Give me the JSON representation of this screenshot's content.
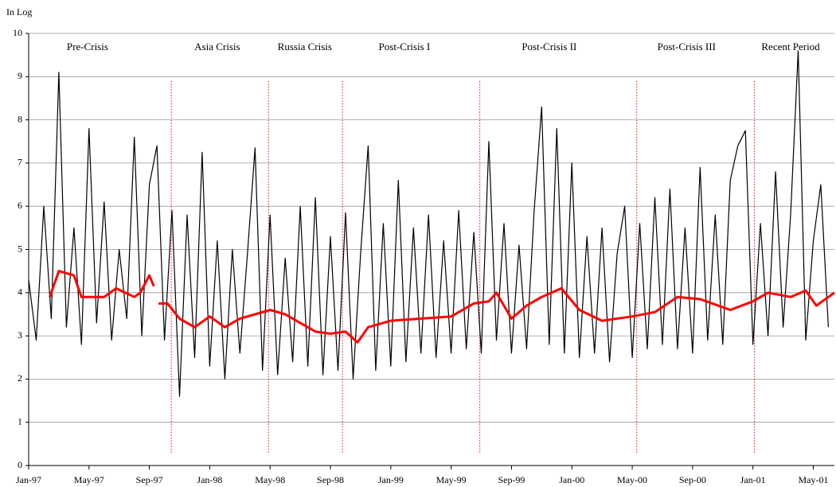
{
  "chart_data": {
    "type": "line",
    "ylabel": "In Log",
    "ylim": [
      0,
      10
    ],
    "yticks": [
      0,
      1,
      2,
      3,
      4,
      5,
      6,
      7,
      8,
      9,
      10
    ],
    "xlim": [
      0,
      53.4
    ],
    "xticks": [
      {
        "value": 0,
        "label": "Jan-97"
      },
      {
        "value": 4,
        "label": "May-97"
      },
      {
        "value": 8,
        "label": "Sep-97"
      },
      {
        "value": 12,
        "label": "Jan-98"
      },
      {
        "value": 16,
        "label": "May-98"
      },
      {
        "value": 20,
        "label": "Sep-98"
      },
      {
        "value": 24,
        "label": "Jan-99"
      },
      {
        "value": 28,
        "label": "May-99"
      },
      {
        "value": 32,
        "label": "Sep-99"
      },
      {
        "value": 36,
        "label": "Jan-00"
      },
      {
        "value": 40,
        "label": "May-00"
      },
      {
        "value": 44,
        "label": "Sep-00"
      },
      {
        "value": 48,
        "label": "Jan-01"
      },
      {
        "value": 52,
        "label": "May-01"
      }
    ],
    "grid": true,
    "periods": [
      {
        "label": "Pre-Crisis",
        "x": 3.9
      },
      {
        "label": "Asia Crisis",
        "x": 12.5
      },
      {
        "label": "Russia Crisis",
        "x": 18.3
      },
      {
        "label": "Post-Crisis I",
        "x": 24.9
      },
      {
        "label": "Post-Crisis II",
        "x": 34.5
      },
      {
        "label": "Post-Crisis III",
        "x": 43.6
      },
      {
        "label": "Recent Period",
        "x": 50.5
      }
    ],
    "dividers": {
      "color": "#ff0000",
      "x": [
        9.45,
        15.9,
        20.8,
        29.9,
        40.3,
        48.1
      ]
    },
    "series": [
      {
        "color": "#000000",
        "x": [
          0,
          0.5,
          1,
          1.5,
          2,
          2.5,
          3,
          3.5,
          4,
          4.5,
          5,
          5.5,
          6,
          6.5,
          7,
          7.5,
          8,
          8.5,
          9,
          9.5,
          10,
          10.5,
          11,
          11.5,
          12,
          12.5,
          13,
          13.5,
          14,
          14.5,
          15,
          15.5,
          16,
          16.5,
          17,
          17.5,
          18,
          18.5,
          19,
          19.5,
          20,
          20.5,
          21,
          21.5,
          22,
          22.5,
          23,
          23.5,
          24,
          24.5,
          25,
          25.5,
          26,
          26.5,
          27,
          27.5,
          28,
          28.5,
          29,
          29.5,
          30,
          30.5,
          31,
          31.5,
          32,
          32.5,
          33,
          33.5,
          34,
          34.5,
          35,
          35.5,
          36,
          36.5,
          37,
          37.5,
          38,
          38.5,
          39,
          39.5,
          40,
          40.5,
          41,
          41.5,
          42,
          42.5,
          43,
          43.5,
          44,
          44.5,
          45,
          45.5,
          46,
          46.5,
          47,
          47.5,
          48,
          48.5,
          49,
          49.5,
          50,
          50.5,
          51,
          51.5,
          52,
          52.5,
          53
        ],
        "values": [
          4.3,
          2.9,
          6.0,
          3.4,
          9.1,
          3.2,
          5.5,
          2.8,
          7.8,
          3.3,
          6.1,
          2.9,
          5.0,
          3.4,
          7.6,
          3.0,
          6.5,
          7.4,
          2.9,
          5.9,
          1.6,
          5.8,
          2.5,
          7.25,
          2.3,
          5.2,
          2.0,
          5.0,
          2.6,
          4.9,
          7.35,
          2.2,
          5.8,
          2.1,
          4.8,
          2.4,
          6.0,
          2.3,
          6.2,
          2.1,
          5.3,
          2.2,
          5.85,
          2.0,
          4.9,
          7.4,
          2.2,
          5.6,
          2.3,
          6.6,
          2.4,
          5.5,
          2.6,
          5.8,
          2.5,
          5.2,
          2.6,
          5.9,
          2.7,
          5.4,
          2.6,
          7.5,
          2.9,
          5.6,
          2.6,
          5.1,
          2.7,
          5.9,
          8.3,
          2.8,
          7.8,
          2.6,
          7.0,
          2.5,
          5.3,
          2.6,
          5.5,
          2.4,
          4.9,
          6.0,
          2.5,
          5.6,
          2.7,
          6.2,
          2.8,
          6.4,
          2.7,
          5.5,
          2.6,
          6.9,
          2.9,
          5.8,
          2.8,
          6.6,
          7.4,
          7.75,
          2.8,
          5.6,
          3.0,
          6.8,
          3.2,
          5.8,
          9.6,
          2.9,
          5.2,
          6.5,
          3.2
        ]
      },
      {
        "color": "#ff0000",
        "x": [
          1.4,
          2.0,
          3.0,
          3.5,
          5,
          5.8,
          7,
          7.4,
          8.0,
          8.3,
          8.45,
          8.6,
          9.2,
          10,
          11,
          12,
          13,
          14,
          15,
          16,
          17,
          18,
          19,
          20,
          21,
          21.8,
          22.5,
          24,
          26,
          28,
          29.5,
          30.5,
          31,
          32,
          33,
          34,
          35.3,
          36.5,
          38,
          40,
          41.5,
          43,
          44.5,
          46.5,
          48,
          49,
          50.5,
          51.5,
          52.2,
          53.4
        ],
        "values": [
          3.9,
          4.5,
          4.4,
          3.9,
          3.9,
          4.1,
          3.9,
          4.0,
          4.4,
          4.15,
          null,
          3.75,
          3.75,
          3.4,
          3.2,
          3.45,
          3.2,
          3.4,
          3.5,
          3.6,
          3.5,
          3.3,
          3.1,
          3.05,
          3.1,
          2.85,
          3.2,
          3.35,
          3.4,
          3.45,
          3.75,
          3.8,
          4.0,
          3.4,
          3.7,
          3.9,
          4.1,
          3.6,
          3.35,
          3.45,
          3.55,
          3.9,
          3.85,
          3.6,
          3.8,
          4.0,
          3.9,
          4.05,
          3.7,
          4.0
        ]
      }
    ]
  }
}
